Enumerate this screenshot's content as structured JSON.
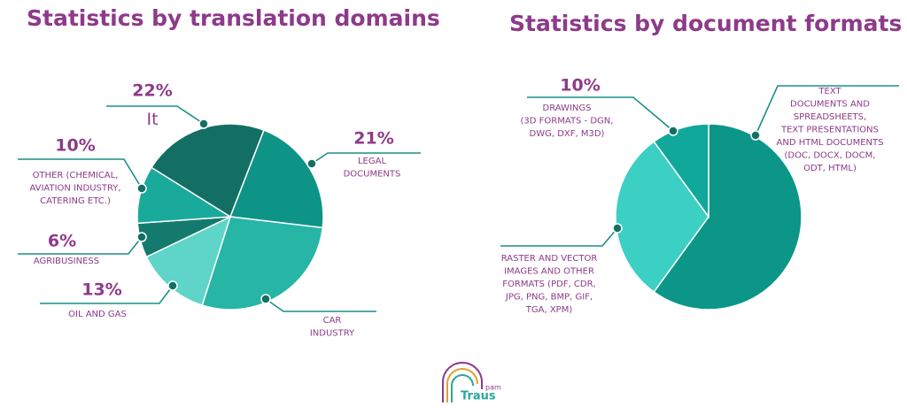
{
  "chart_data": [
    {
      "type": "pie",
      "title": "Statistics by translation domains",
      "categories": [
        "It",
        "LEGAL\nDOCUMENTS",
        "CAR\nINDUSTRY",
        "OIL AND GAS",
        "AGRIBUSINESS",
        "OTHER (CHEMICAL,\nAVIATION INDUSTRY,\nCATERING ETC.)"
      ],
      "values": [
        22,
        21,
        28,
        13,
        6,
        10
      ],
      "value_labels": [
        "22%",
        "21%",
        null,
        "13%",
        "6%",
        "10%"
      ],
      "colors": [
        "#136f63",
        "#0e9486",
        "#27b5a5",
        "#5fd4c8",
        "#147a6e",
        "#1aaa9c"
      ]
    },
    {
      "type": "pie",
      "title": "Statistics by document formats",
      "categories": [
        "TEXT\nDOCUMENTS AND\nSPREADSHEETS,\nTEXT PRESENTATIONS\nAND HTML DOCUMENTS\n(DOC, DOCX, DOCM,\nODT, HTML)",
        "RASTER AND VECTOR\nIMAGES AND OTHER\nFORMATS (PDF, CDR,\nJPG, PNG, BMP, GIF,\nTGA, XPM)",
        "DRAWINGS\n(3D FORMATS - DGN,\nDWG, DXF, M3D)"
      ],
      "values": [
        60,
        30,
        10
      ],
      "value_labels": [
        null,
        null,
        "10%"
      ],
      "colors": [
        "#0b9688",
        "#3ccfc4",
        "#0fa89a"
      ]
    }
  ],
  "logo": {
    "name": "Traus",
    "small": "pam"
  }
}
